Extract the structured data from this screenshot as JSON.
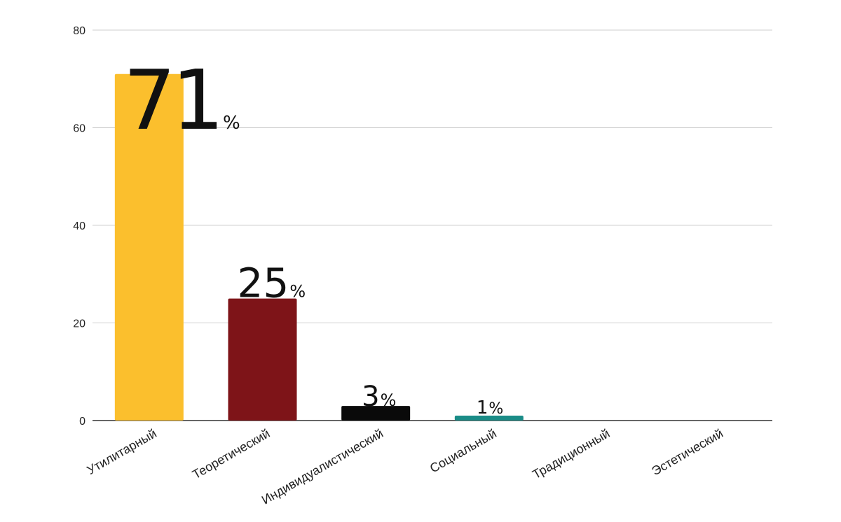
{
  "chart_data": {
    "type": "bar",
    "categories": [
      "Утилитарный",
      "Теоретический",
      "Индивидуалистический",
      "Социальный",
      "Традиционный",
      "Эстетический"
    ],
    "values": [
      71,
      25,
      3,
      1,
      0,
      0
    ],
    "data_labels": [
      "71",
      "25",
      "3",
      "1",
      "",
      ""
    ],
    "percent_sign": "%",
    "colors": [
      "#FBBF2D",
      "#7E1418",
      "#0A0A0A",
      "#1A8C87",
      "#cccccc",
      "#cccccc"
    ],
    "ylim": [
      0,
      80
    ],
    "yticks": [
      "0",
      "20",
      "40",
      "60",
      "80"
    ],
    "grid": true,
    "legend": "none",
    "title": "",
    "xlabel": "",
    "ylabel": ""
  }
}
